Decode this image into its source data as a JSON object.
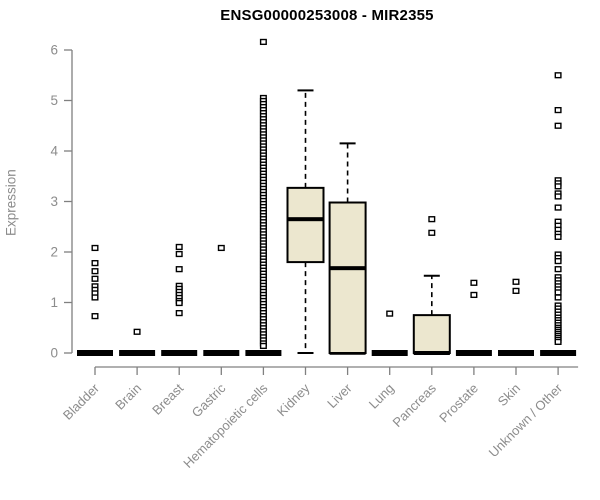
{
  "title": "ENSG00000253008 - MIR2355",
  "y_axis": {
    "label": "Expression"
  },
  "colors": {
    "box_fill": "#ece7cf",
    "box_stroke": "#000000",
    "median": "#000000",
    "outlier": "#000000",
    "axis_line": "#808080",
    "axis_text": "#8c8c8c",
    "title": "#000000"
  },
  "chart_data": {
    "type": "boxplot",
    "title": "ENSG00000253008 - MIR2355",
    "xlabel": "",
    "ylabel": "Expression",
    "ylim": [
      0,
      6
    ],
    "y_ticks": [
      0,
      1,
      2,
      3,
      4,
      5,
      6
    ],
    "grid": "off",
    "categories": [
      "Bladder",
      "Brain",
      "Breast",
      "Gastric",
      "Hematopoietic cells",
      "Kidney",
      "Liver",
      "Lung",
      "Pancreas",
      "Prostate",
      "Skin",
      "Unknown / Other"
    ],
    "boxes": [
      {
        "category": "Bladder",
        "low": 0,
        "q1": 0,
        "median": 0,
        "q3": 0,
        "high": 0,
        "outliers": [
          2.08,
          1.78,
          1.62,
          1.47,
          1.32,
          1.25,
          1.18,
          1.1,
          0.73
        ]
      },
      {
        "category": "Brain",
        "low": 0,
        "q1": 0,
        "median": 0,
        "q3": 0,
        "high": 0,
        "outliers": [
          0.42
        ]
      },
      {
        "category": "Breast",
        "low": 0,
        "q1": 0,
        "median": 0,
        "q3": 0,
        "high": 0,
        "outliers": [
          2.1,
          1.96,
          1.66,
          1.33,
          1.27,
          1.21,
          1.15,
          1.09,
          1.03,
          0.99,
          0.79
        ]
      },
      {
        "category": "Gastric",
        "low": 0,
        "q1": 0,
        "median": 0,
        "q3": 0,
        "high": 0,
        "outliers": [
          2.08
        ]
      },
      {
        "category": "Hematopoietic cells",
        "low": 0,
        "q1": 0,
        "median": 0,
        "q3": 0,
        "high": 0,
        "outliers": [
          6.16,
          5.05,
          4.99,
          4.93,
          4.87,
          4.81,
          4.75,
          4.69,
          4.63,
          4.57,
          4.51,
          4.45,
          4.39,
          4.33,
          4.27,
          4.21,
          4.15,
          4.09,
          4.03,
          3.97,
          3.91,
          3.85,
          3.79,
          3.73,
          3.67,
          3.61,
          3.55,
          3.49,
          3.43,
          3.37,
          3.31,
          3.25,
          3.19,
          3.13,
          3.07,
          3.01,
          2.95,
          2.89,
          2.83,
          2.77,
          2.71,
          2.65,
          2.59,
          2.53,
          2.47,
          2.41,
          2.35,
          2.29,
          2.23,
          2.17,
          2.11,
          2.05,
          1.99,
          1.93,
          1.87,
          1.81,
          1.75,
          1.69,
          1.63,
          1.57,
          1.51,
          1.45,
          1.39,
          1.33,
          1.27,
          1.21,
          1.15,
          1.09,
          1.03,
          0.97,
          0.91,
          0.85,
          0.79,
          0.73,
          0.67,
          0.61,
          0.55,
          0.49,
          0.43,
          0.37,
          0.31,
          0.25,
          0.19,
          0.14
        ]
      },
      {
        "category": "Kidney",
        "low": 0,
        "q1": 1.8,
        "median": 2.65,
        "q3": 3.27,
        "high": 5.2,
        "outliers": []
      },
      {
        "category": "Liver",
        "low": 0,
        "q1": 0,
        "median": 1.68,
        "q3": 2.98,
        "high": 4.15,
        "outliers": []
      },
      {
        "category": "Lung",
        "low": 0,
        "q1": 0,
        "median": 0,
        "q3": 0,
        "high": 0,
        "outliers": [
          0.78
        ]
      },
      {
        "category": "Pancreas",
        "low": 0,
        "q1": 0,
        "median": 0,
        "q3": 0.75,
        "high": 1.53,
        "outliers": [
          2.65,
          2.38
        ]
      },
      {
        "category": "Prostate",
        "low": 0,
        "q1": 0,
        "median": 0,
        "q3": 0,
        "high": 0,
        "outliers": [
          1.39,
          1.15
        ]
      },
      {
        "category": "Skin",
        "low": 0,
        "q1": 0,
        "median": 0,
        "q3": 0,
        "high": 0,
        "outliers": [
          1.41,
          1.23
        ]
      },
      {
        "category": "Unknown / Other",
        "low": 0,
        "q1": 0,
        "median": 0,
        "q3": 0,
        "high": 0,
        "outliers": [
          5.5,
          4.81,
          4.5,
          3.42,
          3.36,
          3.3,
          3.16,
          3.1,
          2.88,
          2.6,
          2.52,
          2.44,
          2.36,
          2.3,
          1.95,
          1.88,
          1.82,
          1.66,
          1.5,
          1.44,
          1.38,
          1.32,
          1.26,
          1.2,
          1.1,
          0.94,
          0.88,
          0.82,
          0.76,
          0.7,
          0.65,
          0.6,
          0.55,
          0.5,
          0.46,
          0.42,
          0.38,
          0.34,
          0.3,
          0.26,
          0.22
        ]
      }
    ]
  }
}
